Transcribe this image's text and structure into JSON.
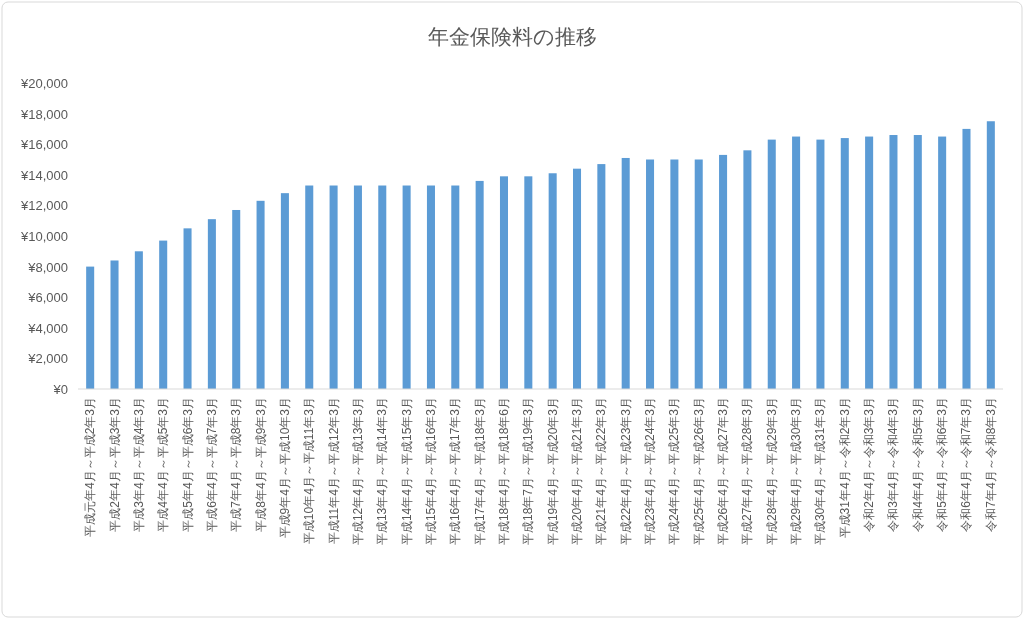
{
  "chart_data": {
    "type": "bar",
    "title": "年金保険料の推移",
    "categories": [
      "平成元年4月～平成2年3月",
      "平成2年4月～平成3年3月",
      "平成3年4月～平成4年3月",
      "平成4年4月～平成5年3月",
      "平成5年4月～平成6年3月",
      "平成6年4月～平成7年3月",
      "平成7年4月～平成8年3月",
      "平成8年4月～平成9年3月",
      "平成9年4月～平成10年3月",
      "平成10年4月～平成11年3月",
      "平成11年4月～平成12年3月",
      "平成12年4月～平成13年3月",
      "平成13年4月～平成14年3月",
      "平成14年4月～平成15年3月",
      "平成15年4月～平成16年3月",
      "平成16年4月～平成17年3月",
      "平成17年4月～平成18年3月",
      "平成18年4月～平成18年6月",
      "平成18年7月～平成19年3月",
      "平成19年4月～平成20年3月",
      "平成20年4月～平成21年3月",
      "平成21年4月～平成22年3月",
      "平成22年4月～平成23年3月",
      "平成23年4月～平成24年3月",
      "平成24年4月～平成25年3月",
      "平成25年4月～平成26年3月",
      "平成26年4月～平成27年3月",
      "平成27年4月～平成28年3月",
      "平成28年4月～平成29年3月",
      "平成29年4月～平成30年3月",
      "平成30年4月～平成31年3月",
      "平成31年4月～令和2年3月",
      "令和2年4月～令和3年3月",
      "令和3年4月～令和4年3月",
      "令和4年4月～令和5年3月",
      "令和5年4月～令和6年3月",
      "令和6年4月～令和7年3月",
      "令和7年4月～令和8年3月"
    ],
    "values": [
      8000,
      8400,
      9000,
      9700,
      10500,
      11100,
      11700,
      12300,
      12800,
      13300,
      13300,
      13300,
      13300,
      13300,
      13300,
      13300,
      13600,
      13900,
      13900,
      14100,
      14400,
      14700,
      15100,
      15000,
      15000,
      15000,
      15300,
      15600,
      16300,
      16500,
      16300,
      16400,
      16500,
      16600,
      16600,
      16500,
      17000,
      17500
    ],
    "color": "#5b9bd5",
    "ylim": [
      0,
      20000
    ],
    "yticks": [
      {
        "value": 0,
        "label": "¥0"
      },
      {
        "value": 2000,
        "label": "¥2,000"
      },
      {
        "value": 4000,
        "label": "¥4,000"
      },
      {
        "value": 6000,
        "label": "¥6,000"
      },
      {
        "value": 8000,
        "label": "¥8,000"
      },
      {
        "value": 10000,
        "label": "¥10,000"
      },
      {
        "value": 12000,
        "label": "¥12,000"
      },
      {
        "value": 14000,
        "label": "¥14,000"
      },
      {
        "value": 16000,
        "label": "¥16,000"
      },
      {
        "value": 18000,
        "label": "¥18,000"
      },
      {
        "value": 20000,
        "label": "¥20,000"
      }
    ]
  }
}
